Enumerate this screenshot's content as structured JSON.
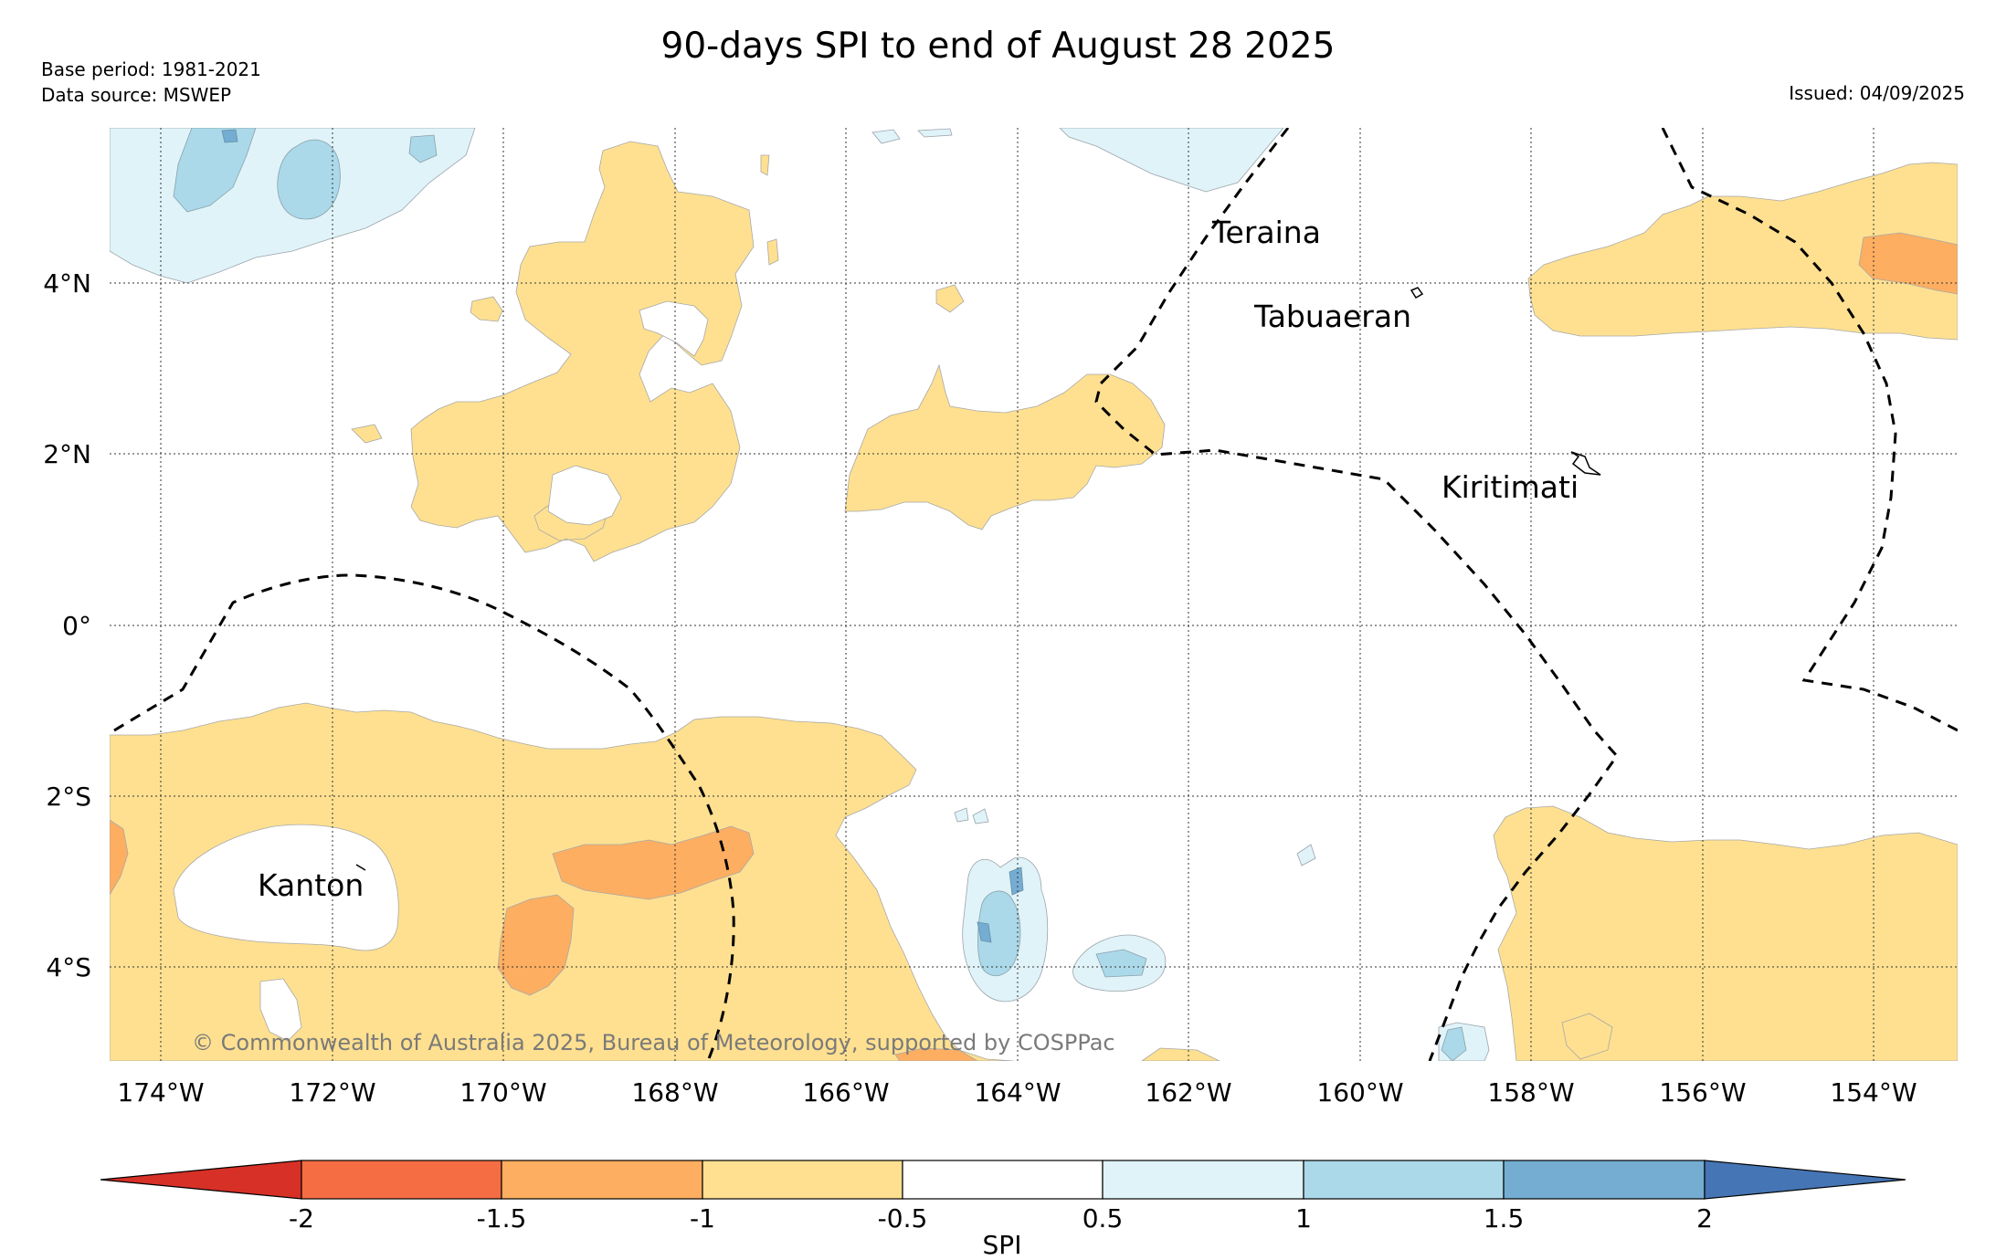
{
  "title": "90-days SPI to end of August 28 2025",
  "base_period": "Base period: 1981-2021",
  "data_source": "Data source: MSWEP",
  "issued": "Issued: 04/09/2025",
  "copyright": "© Commonwealth of Australia 2025, Bureau of Meteorology, supported by COSPPac",
  "map": {
    "lon_range": [
      -174.6,
      -152.9
    ],
    "lat_range": [
      -5.1,
      5.8
    ],
    "lon_ticks": [
      "174°W",
      "172°W",
      "170°W",
      "168°W",
      "166°W",
      "164°W",
      "162°W",
      "160°W",
      "158°W",
      "156°W",
      "154°W"
    ],
    "lat_ticks": [
      "4°N",
      "2°N",
      "0°",
      "2°S",
      "4°S"
    ],
    "gridlines": "dotted",
    "places": [
      "Teraina",
      "Tabuaeran",
      "Kiritimati",
      "Kanton"
    ]
  },
  "colorbar": {
    "title": "SPI",
    "labels": [
      "-2",
      "-1.5",
      "-1",
      "-0.5",
      "0.5",
      "1",
      "1.5",
      "2"
    ],
    "colors": [
      "#d73027",
      "#f46d43",
      "#fdae61",
      "#fee090",
      "#ffffff",
      "#e0f3f8",
      "#abd9e9",
      "#74add1",
      "#4575b4"
    ]
  }
}
